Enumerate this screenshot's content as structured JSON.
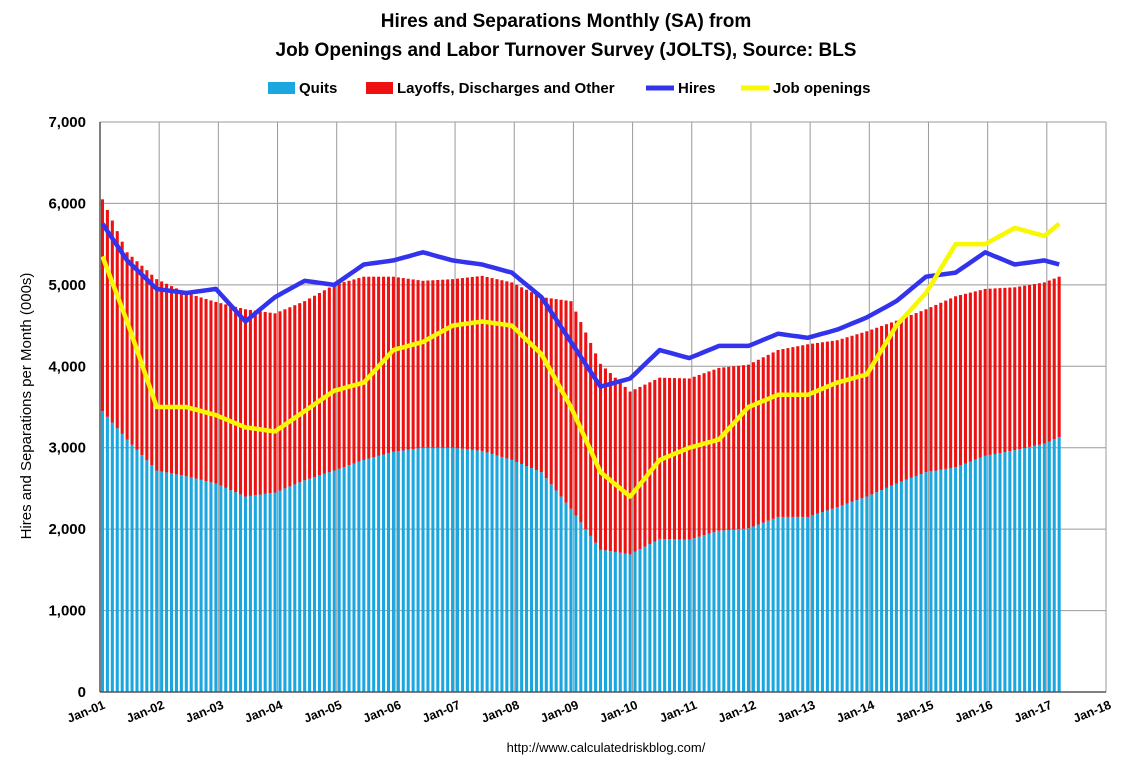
{
  "chart_data": {
    "type": "bar+line",
    "title_line1": "Hires and Separations Monthly (SA) from",
    "title_line2": "Job Openings and Labor Turnover Survey (JOLTS), Source: BLS",
    "ylabel": "Hires and Separations per Month (000s)",
    "ylim": [
      0,
      7000
    ],
    "yticks": [
      "0",
      "1,000",
      "2,000",
      "3,000",
      "4,000",
      "5,000",
      "6,000",
      "7,000"
    ],
    "xlim": [
      "2001-01",
      "2018-01"
    ],
    "xticks": [
      "Jan-01",
      "Jan-02",
      "Jan-03",
      "Jan-04",
      "Jan-05",
      "Jan-06",
      "Jan-07",
      "Jan-08",
      "Jan-09",
      "Jan-10",
      "Jan-11",
      "Jan-12",
      "Jan-13",
      "Jan-14",
      "Jan-15",
      "Jan-16",
      "Jan-17",
      "Jan-18"
    ],
    "grid": true,
    "legend_position": "top",
    "source": "http://www.calculatedriskblog.com/",
    "series": [
      {
        "name": "Quits",
        "kind": "stacked-bar",
        "color": "#1aa7e0",
        "anchors": [
          [
            "2001-01",
            3450
          ],
          [
            "2001-06",
            3100
          ],
          [
            "2001-12",
            2720
          ],
          [
            "2002-06",
            2650
          ],
          [
            "2002-12",
            2560
          ],
          [
            "2003-06",
            2400
          ],
          [
            "2003-12",
            2450
          ],
          [
            "2004-06",
            2600
          ],
          [
            "2004-12",
            2720
          ],
          [
            "2005-06",
            2850
          ],
          [
            "2005-12",
            2950
          ],
          [
            "2006-06",
            3000
          ],
          [
            "2006-12",
            3000
          ],
          [
            "2007-06",
            2960
          ],
          [
            "2007-12",
            2850
          ],
          [
            "2008-06",
            2700
          ],
          [
            "2008-12",
            2250
          ],
          [
            "2009-06",
            1750
          ],
          [
            "2009-12",
            1690
          ],
          [
            "2010-06",
            1880
          ],
          [
            "2010-12",
            1870
          ],
          [
            "2011-06",
            1980
          ],
          [
            "2011-12",
            2010
          ],
          [
            "2012-06",
            2150
          ],
          [
            "2012-12",
            2150
          ],
          [
            "2013-06",
            2270
          ],
          [
            "2013-12",
            2400
          ],
          [
            "2014-06",
            2560
          ],
          [
            "2014-12",
            2700
          ],
          [
            "2015-06",
            2760
          ],
          [
            "2015-12",
            2900
          ],
          [
            "2016-06",
            2970
          ],
          [
            "2016-12",
            3050
          ],
          [
            "2017-03",
            3130
          ]
        ]
      },
      {
        "name": "Layoffs, Discharges and Other",
        "kind": "stacked-bar",
        "color": "#ee1111",
        "anchors": [
          [
            "2001-01",
            2600
          ],
          [
            "2001-06",
            2300
          ],
          [
            "2001-12",
            2350
          ],
          [
            "2002-06",
            2250
          ],
          [
            "2002-12",
            2230
          ],
          [
            "2003-06",
            2300
          ],
          [
            "2003-12",
            2200
          ],
          [
            "2004-06",
            2200
          ],
          [
            "2004-12",
            2280
          ],
          [
            "2005-06",
            2250
          ],
          [
            "2005-12",
            2150
          ],
          [
            "2006-06",
            2050
          ],
          [
            "2006-12",
            2070
          ],
          [
            "2007-06",
            2150
          ],
          [
            "2007-12",
            2180
          ],
          [
            "2008-06",
            2150
          ],
          [
            "2008-12",
            2550
          ],
          [
            "2009-06",
            2280
          ],
          [
            "2009-12",
            2000
          ],
          [
            "2010-06",
            1980
          ],
          [
            "2010-12",
            1980
          ],
          [
            "2011-06",
            2000
          ],
          [
            "2011-12",
            2010
          ],
          [
            "2012-06",
            2050
          ],
          [
            "2012-12",
            2120
          ],
          [
            "2013-06",
            2050
          ],
          [
            "2013-12",
            2030
          ],
          [
            "2014-06",
            2000
          ],
          [
            "2014-12",
            2000
          ],
          [
            "2015-06",
            2100
          ],
          [
            "2015-12",
            2050
          ],
          [
            "2016-06",
            2000
          ],
          [
            "2016-12",
            1980
          ],
          [
            "2017-03",
            1970
          ]
        ]
      },
      {
        "name": "Hires",
        "kind": "line",
        "color": "#3333ee",
        "anchors": [
          [
            "2001-01",
            5750
          ],
          [
            "2001-06",
            5300
          ],
          [
            "2001-12",
            4950
          ],
          [
            "2002-06",
            4900
          ],
          [
            "2002-12",
            4950
          ],
          [
            "2003-06",
            4550
          ],
          [
            "2003-12",
            4850
          ],
          [
            "2004-06",
            5050
          ],
          [
            "2004-12",
            5000
          ],
          [
            "2005-06",
            5250
          ],
          [
            "2005-12",
            5300
          ],
          [
            "2006-06",
            5400
          ],
          [
            "2006-12",
            5300
          ],
          [
            "2007-06",
            5250
          ],
          [
            "2007-12",
            5150
          ],
          [
            "2008-06",
            4850
          ],
          [
            "2008-12",
            4300
          ],
          [
            "2009-06",
            3750
          ],
          [
            "2009-12",
            3850
          ],
          [
            "2010-06",
            4200
          ],
          [
            "2010-12",
            4100
          ],
          [
            "2011-06",
            4250
          ],
          [
            "2011-12",
            4250
          ],
          [
            "2012-06",
            4400
          ],
          [
            "2012-12",
            4350
          ],
          [
            "2013-06",
            4450
          ],
          [
            "2013-12",
            4600
          ],
          [
            "2014-06",
            4800
          ],
          [
            "2014-12",
            5100
          ],
          [
            "2015-06",
            5150
          ],
          [
            "2015-12",
            5400
          ],
          [
            "2016-06",
            5250
          ],
          [
            "2016-12",
            5300
          ],
          [
            "2017-03",
            5250
          ]
        ]
      },
      {
        "name": "Job openings",
        "kind": "line",
        "color": "#f8f800",
        "anchors": [
          [
            "2001-01",
            5350
          ],
          [
            "2001-06",
            4550
          ],
          [
            "2001-12",
            3500
          ],
          [
            "2002-06",
            3500
          ],
          [
            "2002-12",
            3400
          ],
          [
            "2003-06",
            3250
          ],
          [
            "2003-12",
            3200
          ],
          [
            "2004-06",
            3450
          ],
          [
            "2004-12",
            3700
          ],
          [
            "2005-06",
            3800
          ],
          [
            "2005-12",
            4200
          ],
          [
            "2006-06",
            4300
          ],
          [
            "2006-12",
            4500
          ],
          [
            "2007-06",
            4550
          ],
          [
            "2007-12",
            4500
          ],
          [
            "2008-06",
            4150
          ],
          [
            "2008-12",
            3500
          ],
          [
            "2009-06",
            2700
          ],
          [
            "2009-12",
            2400
          ],
          [
            "2010-06",
            2850
          ],
          [
            "2010-12",
            3000
          ],
          [
            "2011-06",
            3100
          ],
          [
            "2011-12",
            3500
          ],
          [
            "2012-06",
            3650
          ],
          [
            "2012-12",
            3650
          ],
          [
            "2013-06",
            3800
          ],
          [
            "2013-12",
            3900
          ],
          [
            "2014-06",
            4500
          ],
          [
            "2014-12",
            4900
          ],
          [
            "2015-06",
            5500
          ],
          [
            "2015-12",
            5500
          ],
          [
            "2016-06",
            5700
          ],
          [
            "2016-12",
            5600
          ],
          [
            "2017-03",
            5750
          ]
        ]
      }
    ]
  }
}
